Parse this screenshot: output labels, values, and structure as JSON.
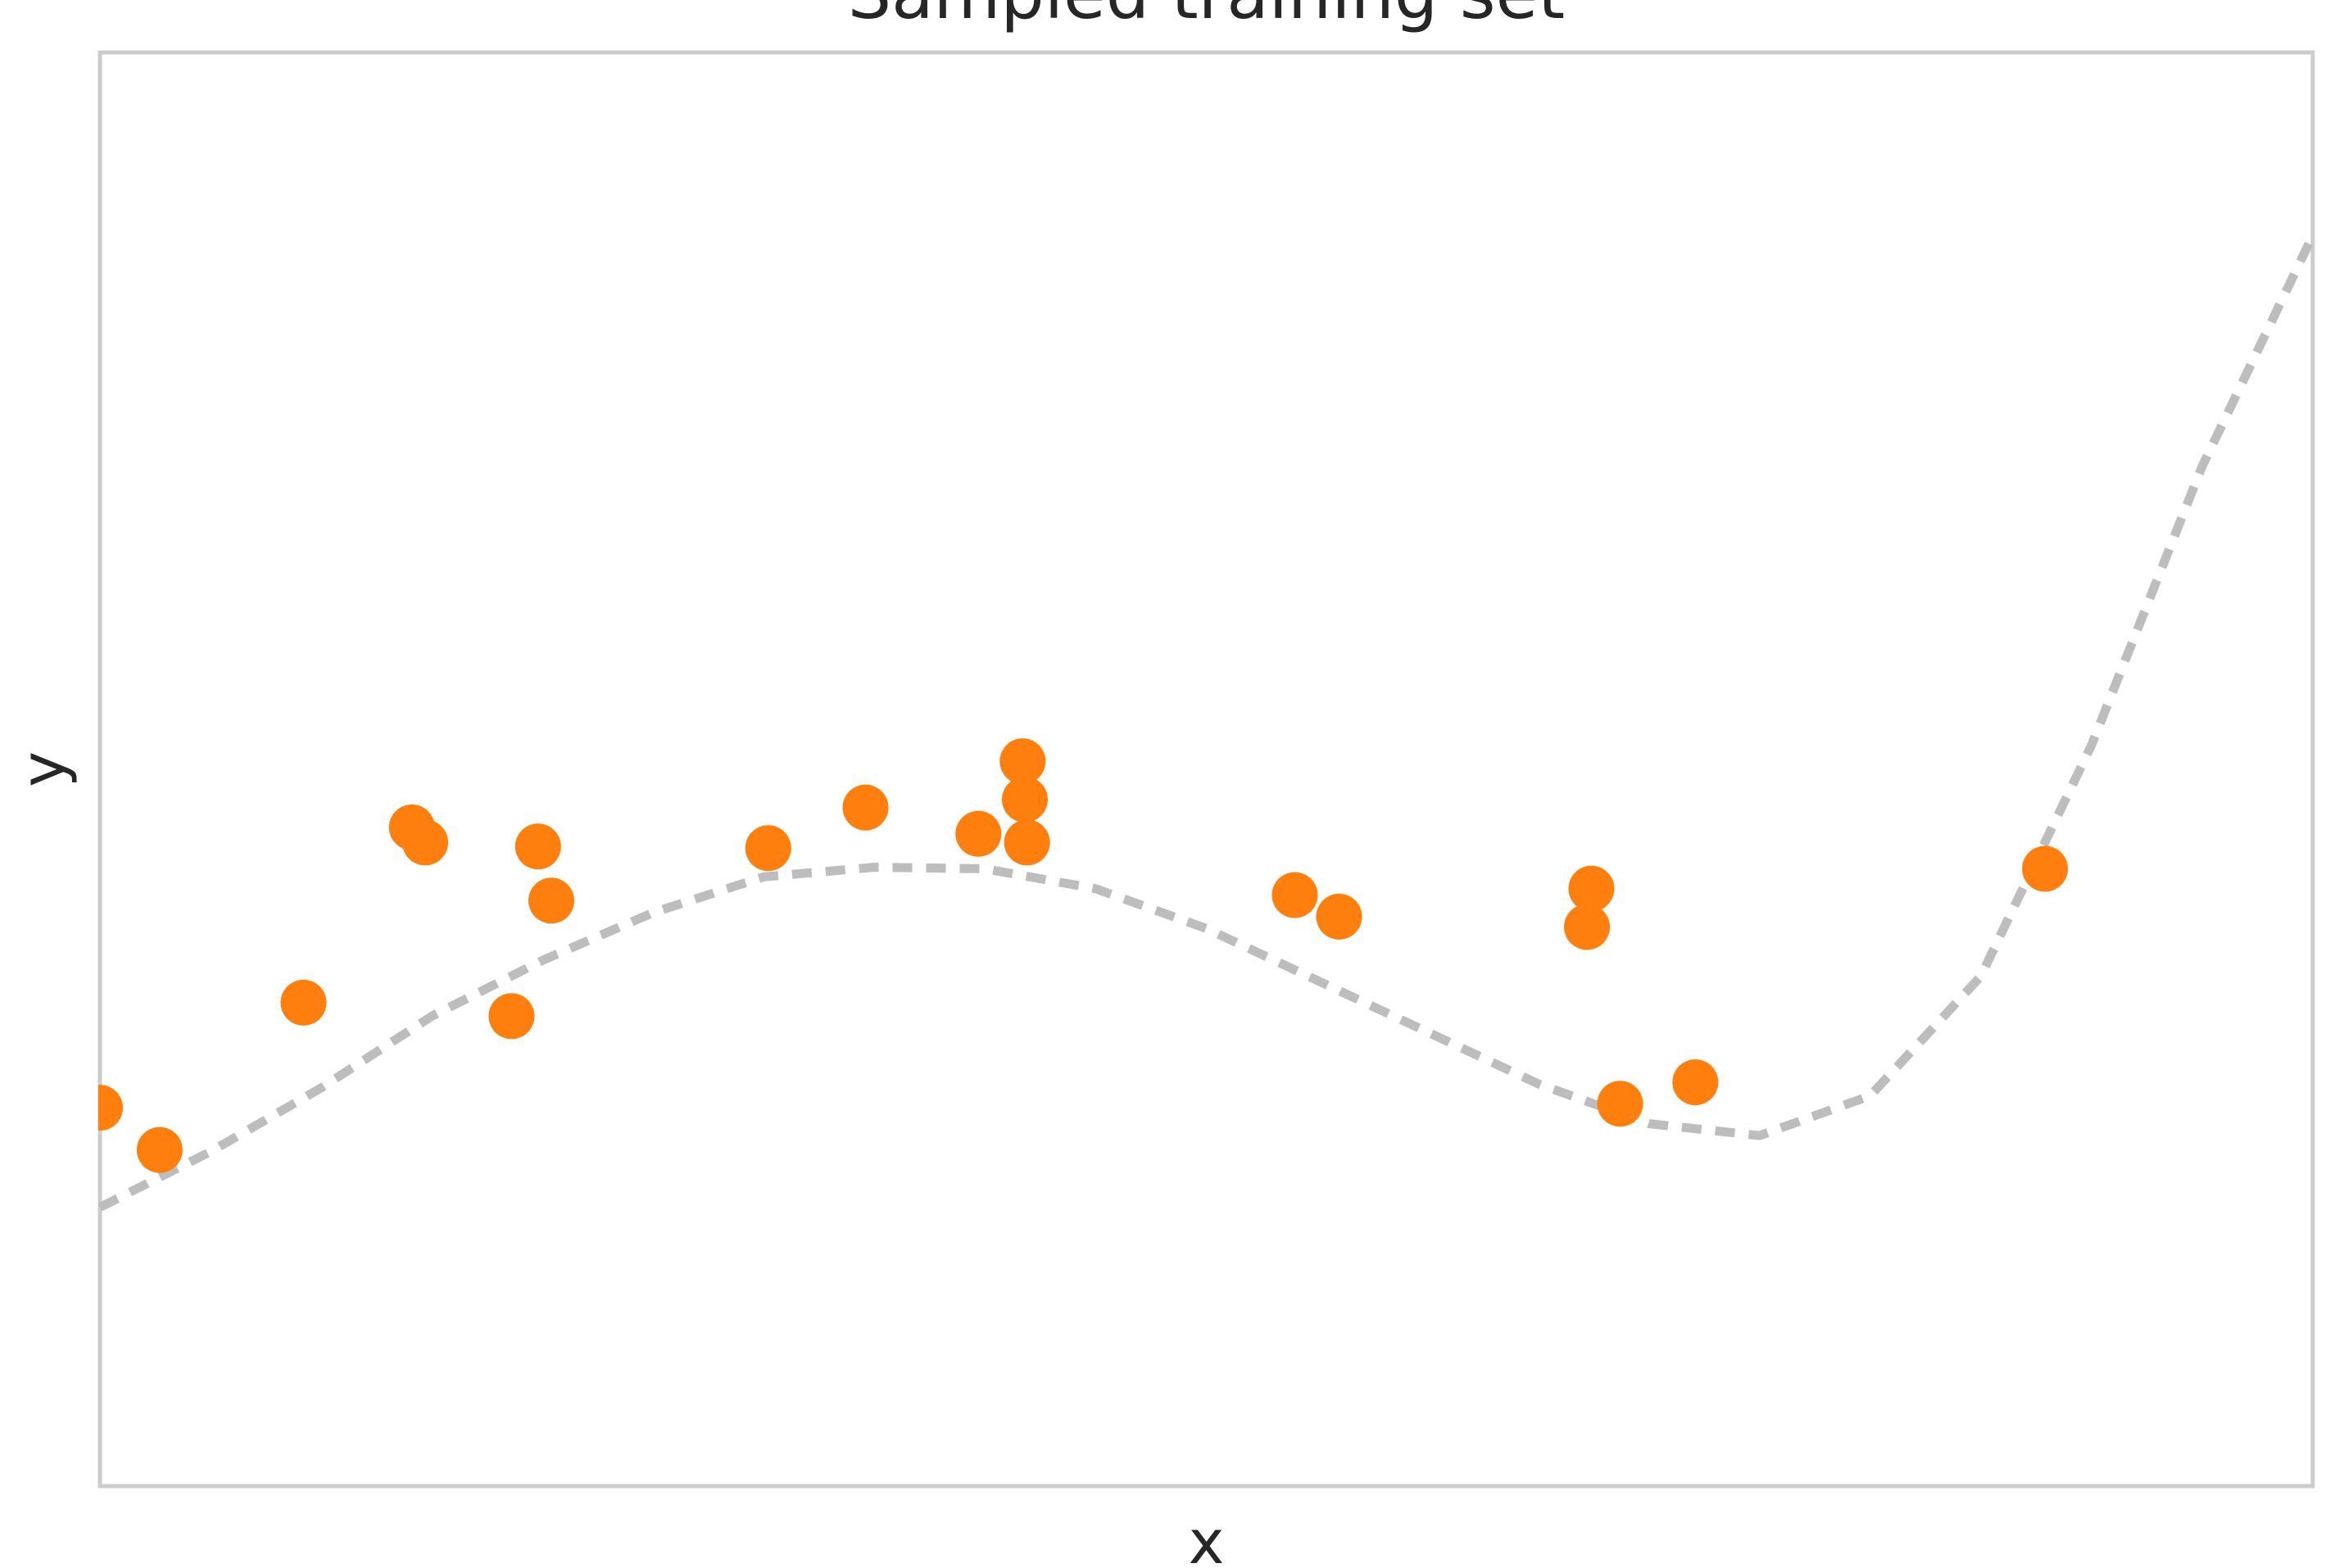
{
  "chart_data": {
    "type": "scatter",
    "title": "Sampled training set",
    "xlabel": "x",
    "ylabel": "y",
    "xlim": [
      0,
      10
    ],
    "ylim": [
      -8.5,
      9.5
    ],
    "grid": false,
    "legend": "none",
    "ticks_visible": false,
    "colors": {
      "points": "#ff7f0e",
      "curve": "#bdbdbd",
      "frame": "#cccccc",
      "text": "#262626"
    },
    "series": [
      {
        "type": "line",
        "style": "dashed",
        "x": [
          0,
          0.5,
          1.0,
          1.5,
          2.0,
          2.5,
          3.0,
          3.5,
          4.0,
          4.5,
          5.0,
          5.5,
          6.0,
          6.5,
          7.0,
          7.5,
          8.0,
          8.5,
          9.0,
          9.5,
          10.0
        ],
        "y": [
          -5.0,
          -4.3,
          -3.5,
          -2.6,
          -1.9,
          -1.3,
          -0.85,
          -0.73,
          -0.75,
          -1.0,
          -1.5,
          -2.15,
          -2.8,
          -3.45,
          -3.95,
          -4.1,
          -3.6,
          -2.1,
          0.8,
          4.3,
          7.2
        ]
      },
      {
        "type": "scatter",
        "points": [
          {
            "x": 0.0,
            "y": -3.75
          },
          {
            "x": 0.27,
            "y": -4.28
          },
          {
            "x": 0.92,
            "y": -2.43
          },
          {
            "x": 1.41,
            "y": -0.23
          },
          {
            "x": 1.47,
            "y": -0.42
          },
          {
            "x": 1.86,
            "y": -2.6
          },
          {
            "x": 1.98,
            "y": -0.47
          },
          {
            "x": 2.04,
            "y": -1.15
          },
          {
            "x": 3.02,
            "y": -0.49
          },
          {
            "x": 3.46,
            "y": 0.02
          },
          {
            "x": 3.97,
            "y": -0.31
          },
          {
            "x": 4.17,
            "y": 0.6
          },
          {
            "x": 4.18,
            "y": 0.12
          },
          {
            "x": 4.19,
            "y": -0.42
          },
          {
            "x": 5.4,
            "y": -1.08
          },
          {
            "x": 5.6,
            "y": -1.35
          },
          {
            "x": 6.72,
            "y": -1.48
          },
          {
            "x": 6.87,
            "y": -3.7
          },
          {
            "x": 6.74,
            "y": -1.0
          },
          {
            "x": 7.21,
            "y": -3.43
          },
          {
            "x": 8.79,
            "y": -0.75
          }
        ]
      }
    ]
  }
}
